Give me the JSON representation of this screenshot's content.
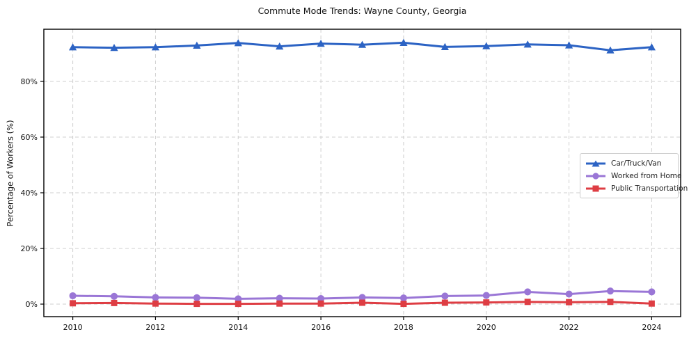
{
  "chart_data": {
    "type": "line",
    "title": "Commute Mode Trends: Wayne County, Georgia",
    "ylabel": "Percentage of Workers (%)",
    "xlabel": "",
    "x": [
      2010,
      2011,
      2012,
      2013,
      2014,
      2015,
      2016,
      2017,
      2018,
      2019,
      2020,
      2021,
      2022,
      2023,
      2024
    ],
    "series": [
      {
        "name": "Car/Truck/Van",
        "color": "#2c63c4",
        "marker": "triangle-up",
        "values": [
          92.3,
          92.1,
          92.3,
          92.9,
          93.8,
          92.6,
          93.6,
          93.2,
          93.9,
          92.4,
          92.7,
          93.3,
          93.0,
          91.2,
          92.3
        ]
      },
      {
        "name": "Worked from Home",
        "color": "#9a76d6",
        "marker": "circle",
        "values": [
          3.0,
          2.8,
          2.4,
          2.3,
          1.9,
          2.1,
          2.0,
          2.4,
          2.2,
          2.9,
          3.1,
          4.4,
          3.6,
          4.7,
          4.4
        ]
      },
      {
        "name": "Public Transportation",
        "color": "#de3d43",
        "marker": "square",
        "values": [
          0.3,
          0.4,
          0.2,
          0.1,
          0.1,
          0.2,
          0.2,
          0.5,
          0.1,
          0.5,
          0.6,
          0.8,
          0.7,
          0.8,
          0.2
        ]
      }
    ],
    "xticks": [
      2010,
      2012,
      2014,
      2016,
      2018,
      2020,
      2022,
      2024
    ],
    "yticks": [
      0,
      20,
      40,
      60,
      80
    ],
    "ytick_labels": [
      "0%",
      "20%",
      "40%",
      "60%",
      "80%"
    ],
    "xlim": [
      2009.3,
      2024.7
    ],
    "ylim": [
      -4.5,
      98.75
    ],
    "grid": "dashed",
    "grid_color": "#cfcfcf",
    "legend_position": "center-right"
  }
}
